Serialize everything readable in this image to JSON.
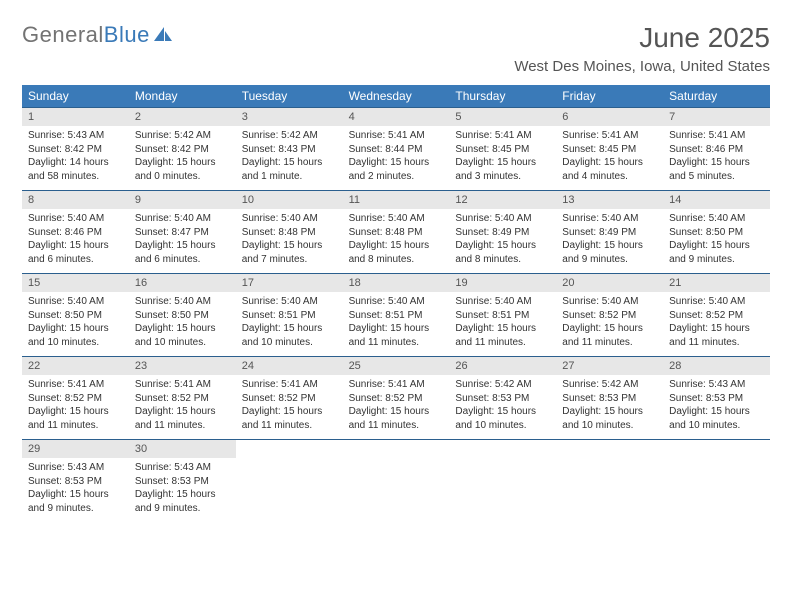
{
  "logo": {
    "part1": "General",
    "part2": "Blue"
  },
  "title": "June 2025",
  "location": "West Des Moines, Iowa, United States",
  "colors": {
    "header_bg": "#3a7ab8",
    "header_text": "#ffffff",
    "week_border": "#2b5f8e",
    "daynum_bg": "#e7e7e7",
    "text": "#333333",
    "title_text": "#555555"
  },
  "dayNames": [
    "Sunday",
    "Monday",
    "Tuesday",
    "Wednesday",
    "Thursday",
    "Friday",
    "Saturday"
  ],
  "weeks": [
    [
      {
        "n": "1",
        "sunrise": "5:43 AM",
        "sunset": "8:42 PM",
        "daylight": "14 hours and 58 minutes."
      },
      {
        "n": "2",
        "sunrise": "5:42 AM",
        "sunset": "8:42 PM",
        "daylight": "15 hours and 0 minutes."
      },
      {
        "n": "3",
        "sunrise": "5:42 AM",
        "sunset": "8:43 PM",
        "daylight": "15 hours and 1 minute."
      },
      {
        "n": "4",
        "sunrise": "5:41 AM",
        "sunset": "8:44 PM",
        "daylight": "15 hours and 2 minutes."
      },
      {
        "n": "5",
        "sunrise": "5:41 AM",
        "sunset": "8:45 PM",
        "daylight": "15 hours and 3 minutes."
      },
      {
        "n": "6",
        "sunrise": "5:41 AM",
        "sunset": "8:45 PM",
        "daylight": "15 hours and 4 minutes."
      },
      {
        "n": "7",
        "sunrise": "5:41 AM",
        "sunset": "8:46 PM",
        "daylight": "15 hours and 5 minutes."
      }
    ],
    [
      {
        "n": "8",
        "sunrise": "5:40 AM",
        "sunset": "8:46 PM",
        "daylight": "15 hours and 6 minutes."
      },
      {
        "n": "9",
        "sunrise": "5:40 AM",
        "sunset": "8:47 PM",
        "daylight": "15 hours and 6 minutes."
      },
      {
        "n": "10",
        "sunrise": "5:40 AM",
        "sunset": "8:48 PM",
        "daylight": "15 hours and 7 minutes."
      },
      {
        "n": "11",
        "sunrise": "5:40 AM",
        "sunset": "8:48 PM",
        "daylight": "15 hours and 8 minutes."
      },
      {
        "n": "12",
        "sunrise": "5:40 AM",
        "sunset": "8:49 PM",
        "daylight": "15 hours and 8 minutes."
      },
      {
        "n": "13",
        "sunrise": "5:40 AM",
        "sunset": "8:49 PM",
        "daylight": "15 hours and 9 minutes."
      },
      {
        "n": "14",
        "sunrise": "5:40 AM",
        "sunset": "8:50 PM",
        "daylight": "15 hours and 9 minutes."
      }
    ],
    [
      {
        "n": "15",
        "sunrise": "5:40 AM",
        "sunset": "8:50 PM",
        "daylight": "15 hours and 10 minutes."
      },
      {
        "n": "16",
        "sunrise": "5:40 AM",
        "sunset": "8:50 PM",
        "daylight": "15 hours and 10 minutes."
      },
      {
        "n": "17",
        "sunrise": "5:40 AM",
        "sunset": "8:51 PM",
        "daylight": "15 hours and 10 minutes."
      },
      {
        "n": "18",
        "sunrise": "5:40 AM",
        "sunset": "8:51 PM",
        "daylight": "15 hours and 11 minutes."
      },
      {
        "n": "19",
        "sunrise": "5:40 AM",
        "sunset": "8:51 PM",
        "daylight": "15 hours and 11 minutes."
      },
      {
        "n": "20",
        "sunrise": "5:40 AM",
        "sunset": "8:52 PM",
        "daylight": "15 hours and 11 minutes."
      },
      {
        "n": "21",
        "sunrise": "5:40 AM",
        "sunset": "8:52 PM",
        "daylight": "15 hours and 11 minutes."
      }
    ],
    [
      {
        "n": "22",
        "sunrise": "5:41 AM",
        "sunset": "8:52 PM",
        "daylight": "15 hours and 11 minutes."
      },
      {
        "n": "23",
        "sunrise": "5:41 AM",
        "sunset": "8:52 PM",
        "daylight": "15 hours and 11 minutes."
      },
      {
        "n": "24",
        "sunrise": "5:41 AM",
        "sunset": "8:52 PM",
        "daylight": "15 hours and 11 minutes."
      },
      {
        "n": "25",
        "sunrise": "5:41 AM",
        "sunset": "8:52 PM",
        "daylight": "15 hours and 11 minutes."
      },
      {
        "n": "26",
        "sunrise": "5:42 AM",
        "sunset": "8:53 PM",
        "daylight": "15 hours and 10 minutes."
      },
      {
        "n": "27",
        "sunrise": "5:42 AM",
        "sunset": "8:53 PM",
        "daylight": "15 hours and 10 minutes."
      },
      {
        "n": "28",
        "sunrise": "5:43 AM",
        "sunset": "8:53 PM",
        "daylight": "15 hours and 10 minutes."
      }
    ],
    [
      {
        "n": "29",
        "sunrise": "5:43 AM",
        "sunset": "8:53 PM",
        "daylight": "15 hours and 9 minutes."
      },
      {
        "n": "30",
        "sunrise": "5:43 AM",
        "sunset": "8:53 PM",
        "daylight": "15 hours and 9 minutes."
      },
      null,
      null,
      null,
      null,
      null
    ]
  ],
  "labels": {
    "sunrise": "Sunrise: ",
    "sunset": "Sunset: ",
    "daylight": "Daylight: "
  }
}
